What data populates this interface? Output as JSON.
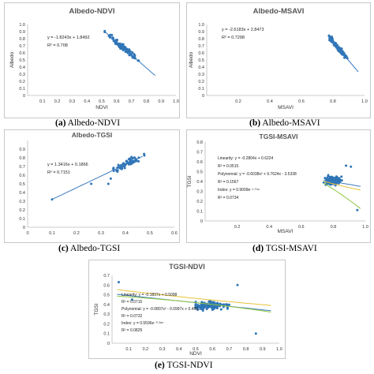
{
  "captions": {
    "a_letter": "(a)",
    "a_text": "Albedo-NDVI",
    "b_letter": "(b)",
    "b_text": "Albedo-MSAVI",
    "c_letter": "(c)",
    "c_text": "Albedo-TGSI",
    "d_letter": "(d)",
    "d_text": "TGSI-MSAVI",
    "e_letter": "(e)",
    "e_text": "TGSI-NDVI"
  },
  "colors": {
    "points": "#2e75b6",
    "linear": "#3a7abf",
    "poly": "#8ec63f",
    "exp": "#e8c33a",
    "extra": "#c0504d"
  },
  "chart_data": [
    {
      "type": "scatter",
      "title": "Albedo-NDVI",
      "xlabel": "NDVI",
      "ylabel": "Albedo",
      "xlim": [
        0,
        1
      ],
      "ylim": [
        0,
        1
      ],
      "xticks": [
        "0.1",
        "0.2",
        "0.3",
        "0.4",
        "0.5",
        "0.6",
        "0.7",
        "0.8",
        "0.9",
        "1.0"
      ],
      "yticks": [
        "0",
        "0.1",
        "0.2",
        "0.3",
        "0.4",
        "0.5",
        "0.6",
        "0.7",
        "0.8",
        "0.9",
        "1.0"
      ],
      "cluster": {
        "x_min": 0.52,
        "x_max": 0.86,
        "center": 0.64,
        "count": 110
      },
      "trendlines": [
        {
          "kind": "linear",
          "slope": -1.8243,
          "intercept": 1.8492,
          "x_range": [
            0.52,
            0.86
          ]
        }
      ],
      "equations": [
        "y = -1.8243x + 1.8492",
        "R² = 0.708"
      ]
    },
    {
      "type": "scatter",
      "title": "Albedo-MSAVI",
      "xlabel": "MSAVI",
      "ylabel": "Albedo",
      "xlim": [
        0,
        1
      ],
      "ylim": [
        0,
        1
      ],
      "xticks": [
        "0.2",
        "0.4",
        "0.6",
        "0.8",
        "1.0"
      ],
      "yticks": [
        "0",
        "0.1",
        "0.2",
        "0.3",
        "0.4",
        "0.5",
        "0.6",
        "0.7",
        "0.8",
        "0.9",
        "1.0"
      ],
      "cluster": {
        "x_min": 0.77,
        "x_max": 0.96,
        "center": 0.83,
        "count": 100
      },
      "trendlines": [
        {
          "kind": "linear",
          "slope": -2.6183,
          "intercept": 2.8473,
          "x_range": [
            0.77,
            0.96
          ]
        }
      ],
      "equations": [
        "y = -2.6183x + 2.8473",
        "R² = 0.7298"
      ]
    },
    {
      "type": "scatter",
      "title": "Albedo-TGSI",
      "xlabel": "",
      "ylabel": "",
      "xlim": [
        0,
        0.6
      ],
      "ylim": [
        0,
        1
      ],
      "xticks": [
        "0",
        "0.1",
        "0.2",
        "0.3",
        "0.4",
        "0.5",
        "0.6"
      ],
      "yticks": [
        "0",
        "0.1",
        "0.2",
        "0.3",
        "0.4",
        "0.5",
        "0.6",
        "0.7",
        "0.8",
        "0.9"
      ],
      "cluster": {
        "x_min": 0.3,
        "x_max": 0.48,
        "center": 0.41,
        "count": 70
      },
      "extra_points": [
        [
          0.1,
          0.32
        ],
        [
          0.26,
          0.5
        ],
        [
          0.33,
          0.5
        ],
        [
          0.34,
          0.56
        ]
      ],
      "trendlines": [
        {
          "kind": "linear",
          "slope": 1.3416,
          "intercept": 0.1866,
          "x_range": [
            0.1,
            0.47
          ]
        }
      ],
      "equations": [
        "y = 1.3416x + 0.1866",
        "R² = 0.7151"
      ]
    },
    {
      "type": "scatter",
      "title": "TGSI-MSAVI",
      "xlabel": "MSAVI",
      "ylabel": "TGSI",
      "xlim": [
        0,
        1
      ],
      "ylim": [
        0,
        0.8
      ],
      "xticks": [
        "0.2",
        "0.4",
        "0.6",
        "0.8",
        "1.0"
      ],
      "yticks": [
        "0",
        "0.1",
        "0.2",
        "0.3",
        "0.4",
        "0.5",
        "0.6",
        "0.7",
        "0.8"
      ],
      "cluster": {
        "x_min": 0.74,
        "x_max": 0.92,
        "center": 0.79,
        "count": 140,
        "y_center": 0.41
      },
      "extra_points": [
        [
          0.95,
          0.11
        ],
        [
          0.91,
          0.55
        ],
        [
          0.88,
          0.56
        ]
      ],
      "trendlines": [
        {
          "kind": "linear",
          "slope": -0.2804,
          "intercept": 0.6224,
          "x_range": [
            0.74,
            0.97
          ]
        },
        {
          "kind": "poly",
          "coeffs": [
            -0.6038,
            9.7624,
            -3.5338
          ],
          "x_range": [
            0.74,
            0.97
          ]
        },
        {
          "kind": "exp",
          "a": 0.9009,
          "b": -1.09,
          "x_range": [
            0.74,
            0.97
          ]
        }
      ],
      "equations": [
        "Linearity:  y = -0.2804x + 0.6224",
        "R² = 0.0515",
        "Polynomial:  y = -0.6038x² + 9.7624x - 3.5338",
        "R² = 0.1567",
        "Index:  y = 0.9009e⁻¹·⁰⁹ˣ",
        "R² = 0.0734"
      ]
    },
    {
      "type": "scatter",
      "title": "TGSI-NDVI",
      "xlabel": "NDVI",
      "ylabel": "TGSI",
      "xlim": [
        0,
        1
      ],
      "ylim": [
        0,
        0.7
      ],
      "xticks": [
        "0.1",
        "0.2",
        "0.3",
        "0.4",
        "0.5",
        "0.6",
        "0.7",
        "0.8",
        "0.9",
        "1.0"
      ],
      "yticks": [
        "0",
        "0.1",
        "0.2",
        "0.3",
        "0.4",
        "0.5",
        "0.6",
        "0.7"
      ],
      "cluster": {
        "x_min": 0.5,
        "x_max": 0.85,
        "center": 0.58,
        "count": 150,
        "y_center": 0.39
      },
      "extra_points": [
        [
          0.04,
          0.63
        ],
        [
          0.75,
          0.6
        ],
        [
          0.86,
          0.1
        ],
        [
          0.12,
          0.45
        ]
      ],
      "trendlines": [
        {
          "kind": "linear",
          "slope": -0.1837,
          "intercept": 0.5098,
          "x_range": [
            0.03,
            0.95
          ]
        },
        {
          "kind": "poly2",
          "coeffs": [
            -0.0807,
            -0.0997,
            0.489
          ],
          "x_range": [
            0.03,
            0.95
          ]
        },
        {
          "kind": "exp",
          "a": 0.5596,
          "b": -0.38,
          "x_range": [
            0.03,
            0.95
          ]
        }
      ],
      "equations": [
        "Linearity:  y = -0.1837x + 0.5098",
        "R² = 0.0715",
        "Polynomial:  y = -0.0807x² - 0.0997x + 0.489",
        "R² = 0.0732",
        "Index:  y = 0.5596e⁻⁰·³⁸ˣ",
        "R² = 0.0825"
      ]
    }
  ]
}
